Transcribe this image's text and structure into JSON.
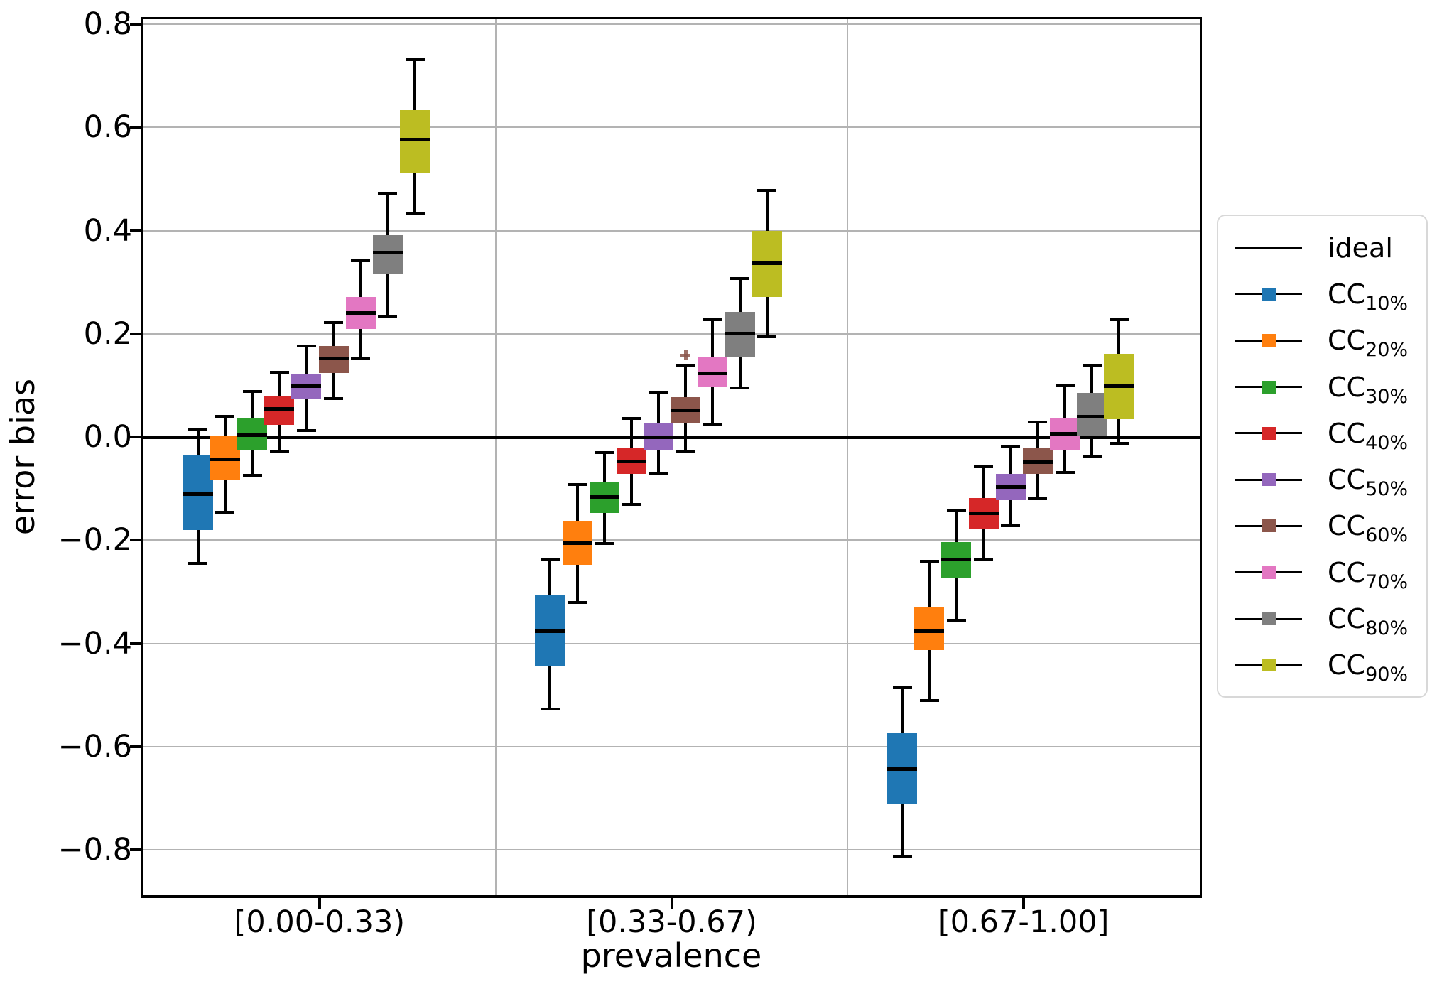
{
  "chart_data": {
    "type": "boxplot",
    "title": "",
    "xlabel": "prevalence",
    "ylabel": "error bias",
    "ylim": [
      -0.888,
      0.81
    ],
    "grid": true,
    "grid_color": "#b3b3b3",
    "ideal_line": {
      "label": "ideal",
      "y": 0.0,
      "color": "#000000"
    },
    "ytick_values": [
      0.8,
      0.6,
      0.4,
      0.2,
      0.0,
      -0.2,
      -0.4,
      -0.6,
      -0.8
    ],
    "ytick_labels": [
      "0.8",
      "0.6",
      "0.4",
      "0.2",
      "0.0",
      "−0.2",
      "−0.4",
      "−0.6",
      "−0.8"
    ],
    "categories": [
      "[0.00-0.33)",
      "[0.33-0.67)",
      "[0.67-1.00]"
    ],
    "legend_position": "right",
    "series": [
      {
        "name": "CC",
        "sub": "10%",
        "color": "#1f77b4",
        "boxes": [
          {
            "whislo": -0.245,
            "q1": -0.18,
            "med": -0.111,
            "q3": -0.035,
            "whishi": 0.014,
            "fliers": []
          },
          {
            "whislo": -0.527,
            "q1": -0.444,
            "med": -0.377,
            "q3": -0.305,
            "whishi": -0.238,
            "fliers": []
          },
          {
            "whislo": -0.813,
            "q1": -0.711,
            "med": -0.644,
            "q3": -0.574,
            "whishi": -0.486,
            "fliers": []
          }
        ]
      },
      {
        "name": "CC",
        "sub": "20%",
        "color": "#ff7f0e",
        "boxes": [
          {
            "whislo": -0.146,
            "q1": -0.084,
            "med": -0.043,
            "q3": 0.001,
            "whishi": 0.04,
            "fliers": []
          },
          {
            "whislo": -0.321,
            "q1": -0.248,
            "med": -0.205,
            "q3": -0.164,
            "whishi": -0.092,
            "fliers": []
          },
          {
            "whislo": -0.511,
            "q1": -0.413,
            "med": -0.376,
            "q3": -0.33,
            "whishi": -0.241,
            "fliers": []
          }
        ]
      },
      {
        "name": "CC",
        "sub": "30%",
        "color": "#2ca02c",
        "boxes": [
          {
            "whislo": -0.074,
            "q1": -0.026,
            "med": 0.004,
            "q3": 0.036,
            "whishi": 0.088,
            "fliers": []
          },
          {
            "whislo": -0.206,
            "q1": -0.147,
            "med": -0.116,
            "q3": -0.087,
            "whishi": -0.03,
            "fliers": []
          },
          {
            "whislo": -0.355,
            "q1": -0.273,
            "med": -0.237,
            "q3": -0.204,
            "whishi": -0.143,
            "fliers": []
          }
        ]
      },
      {
        "name": "CC",
        "sub": "40%",
        "color": "#d62728",
        "boxes": [
          {
            "whislo": -0.029,
            "q1": 0.024,
            "med": 0.055,
            "q3": 0.079,
            "whishi": 0.125,
            "fliers": []
          },
          {
            "whislo": -0.13,
            "q1": -0.072,
            "med": -0.047,
            "q3": -0.022,
            "whishi": 0.036,
            "fliers": []
          },
          {
            "whislo": -0.236,
            "q1": -0.179,
            "med": -0.148,
            "q3": -0.118,
            "whishi": -0.056,
            "fliers": []
          }
        ]
      },
      {
        "name": "CC",
        "sub": "50%",
        "color": "#9467bd",
        "boxes": [
          {
            "whislo": 0.013,
            "q1": 0.074,
            "med": 0.099,
            "q3": 0.123,
            "whishi": 0.177,
            "fliers": []
          },
          {
            "whislo": -0.07,
            "q1": -0.024,
            "med": -0.001,
            "q3": 0.026,
            "whishi": 0.085,
            "fliers": []
          },
          {
            "whislo": -0.172,
            "q1": -0.123,
            "med": -0.097,
            "q3": -0.071,
            "whishi": -0.017,
            "fliers": []
          }
        ]
      },
      {
        "name": "CC",
        "sub": "60%",
        "color": "#8c564b",
        "boxes": [
          {
            "whislo": 0.074,
            "q1": 0.124,
            "med": 0.152,
            "q3": 0.177,
            "whishi": 0.222,
            "fliers": []
          },
          {
            "whislo": -0.028,
            "q1": 0.027,
            "med": 0.052,
            "q3": 0.078,
            "whishi": 0.139,
            "fliers": [
              0.158
            ]
          },
          {
            "whislo": -0.119,
            "q1": -0.071,
            "med": -0.049,
            "q3": -0.021,
            "whishi": 0.029,
            "fliers": []
          }
        ]
      },
      {
        "name": "CC",
        "sub": "70%",
        "color": "#e377c2",
        "boxes": [
          {
            "whislo": 0.152,
            "q1": 0.209,
            "med": 0.241,
            "q3": 0.271,
            "whishi": 0.342,
            "fliers": []
          },
          {
            "whislo": 0.024,
            "q1": 0.096,
            "med": 0.123,
            "q3": 0.155,
            "whishi": 0.228,
            "fliers": []
          },
          {
            "whislo": -0.068,
            "q1": -0.025,
            "med": 0.006,
            "q3": 0.036,
            "whishi": 0.1,
            "fliers": []
          }
        ]
      },
      {
        "name": "CC",
        "sub": "80%",
        "color": "#7f7f7f",
        "boxes": [
          {
            "whislo": 0.234,
            "q1": 0.315,
            "med": 0.358,
            "q3": 0.392,
            "whishi": 0.473,
            "fliers": []
          },
          {
            "whislo": 0.095,
            "q1": 0.155,
            "med": 0.2,
            "q3": 0.242,
            "whishi": 0.307,
            "fliers": []
          },
          {
            "whislo": -0.038,
            "q1": 0.003,
            "med": 0.04,
            "q3": 0.086,
            "whishi": 0.139,
            "fliers": []
          }
        ]
      },
      {
        "name": "CC",
        "sub": "90%",
        "color": "#bcbd22",
        "boxes": [
          {
            "whislo": 0.432,
            "q1": 0.512,
            "med": 0.576,
            "q3": 0.634,
            "whishi": 0.732,
            "fliers": []
          },
          {
            "whislo": 0.195,
            "q1": 0.271,
            "med": 0.337,
            "q3": 0.4,
            "whishi": 0.478,
            "fliers": []
          },
          {
            "whislo": -0.012,
            "q1": 0.034,
            "med": 0.099,
            "q3": 0.161,
            "whishi": 0.227,
            "fliers": []
          }
        ]
      }
    ]
  }
}
